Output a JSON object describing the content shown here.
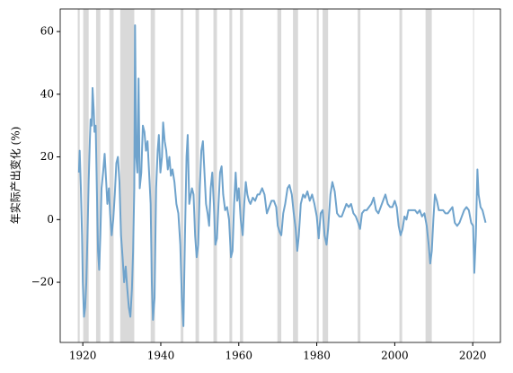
{
  "chart_data": {
    "type": "line",
    "ylabel": "年实际产出变化 (%)",
    "xlim": [
      1914.2,
      2027.1
    ],
    "ylim": [
      -39.2,
      67.2
    ],
    "xticks": [
      1920,
      1940,
      1960,
      1980,
      2000,
      2020
    ],
    "yticks": [
      {
        "value": -20,
        "label": "−20"
      },
      0,
      20,
      40,
      60
    ],
    "recessions": [
      [
        1918.7,
        1919.2
      ],
      [
        1920.1,
        1921.5
      ],
      [
        1923.4,
        1924.5
      ],
      [
        1926.8,
        1927.9
      ],
      [
        1929.6,
        1933.2
      ],
      [
        1937.4,
        1938.5
      ],
      [
        1945.1,
        1945.8
      ],
      [
        1948.9,
        1949.8
      ],
      [
        1953.5,
        1954.4
      ],
      [
        1957.6,
        1958.3
      ],
      [
        1960.3,
        1961.1
      ],
      [
        1969.9,
        1970.9
      ],
      [
        1973.9,
        1975.2
      ],
      [
        1980.0,
        1980.5
      ],
      [
        1981.5,
        1982.9
      ],
      [
        1990.5,
        1991.2
      ],
      [
        2001.2,
        2001.9
      ],
      [
        2007.9,
        2009.5
      ],
      [
        2020.1,
        2020.3
      ]
    ],
    "recession_color": "#d9d9d9",
    "x": [
      1919.0,
      1919.2,
      1919.5,
      1919.8,
      1920.0,
      1920.3,
      1920.6,
      1920.9,
      1921.2,
      1921.5,
      1921.8,
      1922.0,
      1922.3,
      1922.5,
      1922.8,
      1923.0,
      1923.3,
      1923.6,
      1923.9,
      1924.2,
      1924.5,
      1924.8,
      1925.2,
      1925.6,
      1926.0,
      1926.3,
      1926.7,
      1927.0,
      1927.4,
      1927.8,
      1928.2,
      1928.6,
      1929.0,
      1929.4,
      1929.8,
      1930.2,
      1930.6,
      1931.0,
      1931.4,
      1931.8,
      1932.2,
      1932.6,
      1932.9,
      1933.2,
      1933.4,
      1933.7,
      1934.0,
      1934.3,
      1934.6,
      1935.0,
      1935.4,
      1935.8,
      1936.2,
      1936.6,
      1937.0,
      1937.4,
      1937.7,
      1938.0,
      1938.4,
      1938.8,
      1939.2,
      1939.5,
      1939.9,
      1940.3,
      1940.6,
      1941.0,
      1941.4,
      1941.8,
      1942.2,
      1942.6,
      1943.0,
      1943.5,
      1944.0,
      1944.5,
      1945.0,
      1945.4,
      1945.8,
      1946.2,
      1946.6,
      1946.9,
      1947.3,
      1947.7,
      1948.0,
      1948.4,
      1948.8,
      1949.2,
      1949.6,
      1950.0,
      1950.4,
      1950.8,
      1951.2,
      1951.6,
      1952.0,
      1952.4,
      1952.8,
      1953.2,
      1953.6,
      1954.0,
      1954.4,
      1954.8,
      1955.2,
      1955.6,
      1956.0,
      1956.5,
      1957.0,
      1957.5,
      1958.0,
      1958.4,
      1958.8,
      1959.2,
      1959.6,
      1960.0,
      1960.5,
      1961.0,
      1961.4,
      1961.8,
      1962.2,
      1962.6,
      1963.0,
      1963.6,
      1964.2,
      1964.8,
      1965.3,
      1966.0,
      1966.6,
      1967.2,
      1967.8,
      1968.4,
      1969.0,
      1969.6,
      1970.0,
      1970.5,
      1970.9,
      1971.4,
      1971.9,
      1972.5,
      1973.0,
      1973.6,
      1974.1,
      1974.6,
      1975.0,
      1975.4,
      1975.9,
      1976.5,
      1977.0,
      1977.6,
      1978.2,
      1978.8,
      1979.4,
      1980.0,
      1980.5,
      1981.0,
      1981.5,
      1982.0,
      1982.5,
      1982.9,
      1983.5,
      1984.0,
      1984.6,
      1985.2,
      1985.8,
      1986.4,
      1987.0,
      1987.6,
      1988.2,
      1988.8,
      1989.4,
      1990.0,
      1990.6,
      1991.1,
      1991.6,
      1992.2,
      1992.8,
      1993.4,
      1994.0,
      1994.6,
      1995.2,
      1995.8,
      1996.4,
      1997.0,
      1997.6,
      1998.2,
      1998.8,
      1999.4,
      2000.0,
      2000.5,
      2001.0,
      2001.5,
      2002.0,
      2002.5,
      2003.0,
      2003.5,
      2004.0,
      2004.6,
      2005.2,
      2005.8,
      2006.4,
      2007.0,
      2007.6,
      2008.2,
      2008.7,
      2009.1,
      2009.5,
      2009.9,
      2010.3,
      2010.8,
      2011.3,
      2011.8,
      2012.4,
      2013.0,
      2013.6,
      2014.2,
      2014.8,
      2015.4,
      2016.0,
      2016.6,
      2017.2,
      2017.8,
      2018.4,
      2019.0,
      2019.6,
      2020.1,
      2020.4,
      2020.8,
      2021.2,
      2021.5,
      2022.0,
      2022.5,
      2022.9,
      2023.3
    ],
    "series": [
      {
        "color": "#6fa3cc",
        "values": [
          15,
          22,
          10,
          -5,
          -20,
          -31,
          -28,
          -20,
          -5,
          12,
          25,
          32,
          30,
          42,
          35,
          28,
          30,
          10,
          -10,
          -16,
          -5,
          10,
          15,
          21,
          12,
          5,
          10,
          2,
          -5,
          0,
          8,
          18,
          20,
          12,
          -5,
          -12,
          -20,
          -15,
          -22,
          -28,
          -31,
          -22,
          -10,
          10,
          62,
          20,
          15,
          45,
          10,
          15,
          30,
          28,
          22,
          25,
          15,
          5,
          -20,
          -32,
          -25,
          10,
          22,
          27,
          15,
          20,
          31,
          25,
          22,
          16,
          20,
          14,
          16,
          12,
          5,
          2,
          -8,
          -25,
          -34,
          -5,
          20,
          27,
          5,
          8,
          10,
          8,
          -5,
          -12,
          -8,
          10,
          22,
          25,
          15,
          5,
          2,
          -2,
          10,
          15,
          5,
          -8,
          -6,
          5,
          15,
          17,
          8,
          3,
          4,
          0,
          -12,
          -10,
          5,
          15,
          6,
          10,
          0,
          -5,
          5,
          12,
          8,
          6,
          5,
          7,
          6,
          8,
          8,
          10,
          8,
          2,
          4,
          6,
          6,
          4,
          -2,
          -4,
          -5,
          2,
          5,
          10,
          11,
          8,
          2,
          -3,
          -10,
          -5,
          5,
          8,
          7,
          9,
          6,
          8,
          5,
          1,
          -6,
          2,
          3,
          -5,
          -8,
          -3,
          8,
          12,
          9,
          2,
          1,
          1,
          3,
          5,
          4,
          5,
          2,
          1,
          -1,
          -3,
          2,
          3,
          3,
          4,
          5,
          7,
          3,
          2,
          4,
          6,
          8,
          5,
          4,
          4,
          6,
          4,
          -2,
          -5,
          -3,
          1,
          0,
          3,
          3,
          3,
          3,
          2,
          3,
          1,
          2,
          -2,
          -8,
          -14,
          -10,
          0,
          8,
          6,
          3,
          3,
          3,
          2,
          2,
          3,
          4,
          -1,
          -2,
          -1,
          1,
          3,
          4,
          3,
          -1,
          -2,
          -17,
          -5,
          16,
          8,
          4,
          3,
          1,
          -1
        ]
      }
    ]
  }
}
